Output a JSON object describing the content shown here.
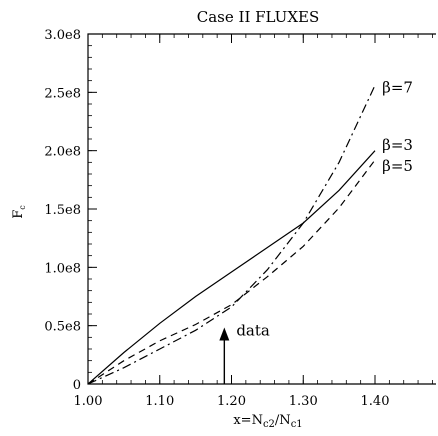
{
  "chart_data": {
    "type": "line",
    "title": "Case II FLUXES",
    "xlabel": {
      "base": "x=N",
      "sub1": "c2",
      "mid": "/N",
      "sub2": "c1"
    },
    "ylabel": {
      "base": "F",
      "sub": "c"
    },
    "xlim": [
      1.0,
      1.485
    ],
    "ylim": [
      0,
      300000000
    ],
    "x_ticks": [
      1.0,
      1.1,
      1.2,
      1.3,
      1.4
    ],
    "x_tick_labels": [
      "1.00",
      "1.10",
      "1.20",
      "1.30",
      "1.40"
    ],
    "y_ticks": [
      0,
      50000000,
      100000000,
      150000000,
      200000000,
      250000000,
      300000000
    ],
    "y_tick_labels": [
      "0",
      "0.5e8",
      "1.0e8",
      "1.5e8",
      "2.0e8",
      "2.5e8",
      "3.0e8"
    ],
    "series": [
      {
        "name": "β=3",
        "style": "solid",
        "x": [
          1.0,
          1.05,
          1.1,
          1.15,
          1.2,
          1.25,
          1.3,
          1.35,
          1.4
        ],
        "values": [
          0,
          27000000,
          52000000,
          75000000,
          96000000,
          117000000,
          138000000,
          166000000,
          200000000
        ]
      },
      {
        "name": "β=5",
        "style": "dashed",
        "x": [
          1.0,
          1.05,
          1.1,
          1.15,
          1.2,
          1.25,
          1.3,
          1.35,
          1.4
        ],
        "values": [
          0,
          20000000,
          37000000,
          51000000,
          68000000,
          92000000,
          118000000,
          151000000,
          192000000
        ]
      },
      {
        "name": "β=7",
        "style": "dashdot",
        "x": [
          1.0,
          1.05,
          1.1,
          1.15,
          1.2,
          1.25,
          1.3,
          1.35,
          1.4
        ],
        "values": [
          0,
          14000000,
          30000000,
          46000000,
          66000000,
          98000000,
          138000000,
          190000000,
          256000000
        ]
      }
    ],
    "series_labels": [
      {
        "text": "β=7",
        "x": 1.41,
        "y": 254000000
      },
      {
        "text": "β=3",
        "x": 1.41,
        "y": 205000000
      },
      {
        "text": "β=5",
        "x": 1.41,
        "y": 187000000
      }
    ],
    "annotation": {
      "text": "data",
      "x": 1.19,
      "y_tip": 45000000,
      "y_base": 0
    }
  }
}
